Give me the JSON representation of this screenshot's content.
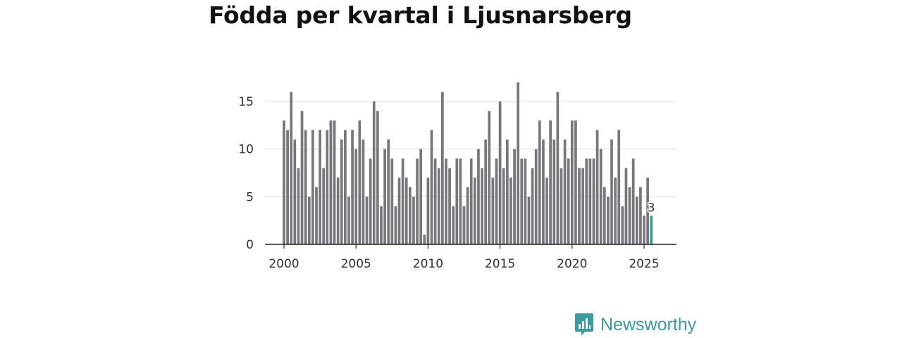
{
  "chart_data": {
    "type": "bar",
    "title": "Födda per kvartal i Ljusnarsberg",
    "xlabel": "",
    "ylabel": "",
    "ylim": [
      0,
      17
    ],
    "yticks": [
      0,
      5,
      10,
      15
    ],
    "xticks": [
      "2000",
      "2005",
      "2010",
      "2015",
      "2020",
      "2025"
    ],
    "start_year": 2000,
    "values": [
      13,
      12,
      16,
      11,
      8,
      14,
      12,
      5,
      12,
      6,
      12,
      8,
      12,
      13,
      13,
      7,
      11,
      12,
      5,
      12,
      10,
      13,
      11,
      5,
      9,
      15,
      14,
      4,
      10,
      11,
      9,
      4,
      7,
      9,
      7,
      6,
      5,
      9,
      10,
      1,
      7,
      12,
      9,
      8,
      16,
      9,
      8,
      4,
      9,
      9,
      4,
      6,
      9,
      7,
      10,
      8,
      11,
      14,
      7,
      9,
      15,
      8,
      11,
      7,
      10,
      17,
      9,
      9,
      5,
      8,
      10,
      13,
      11,
      7,
      13,
      11,
      16,
      8,
      11,
      9,
      13,
      13,
      8,
      8,
      9,
      9,
      9,
      12,
      10,
      6,
      5,
      11,
      7,
      12,
      4,
      8,
      6,
      9,
      5,
      6,
      3,
      7,
      3
    ],
    "highlight_index": 102,
    "highlight_label": "3",
    "colors": {
      "bar": "#77767c",
      "highlight": "#2aa198",
      "grid": "#dddddd",
      "axis": "#222222"
    }
  },
  "brand": {
    "name": "Newsworthy",
    "color": "#3a9c9c"
  }
}
